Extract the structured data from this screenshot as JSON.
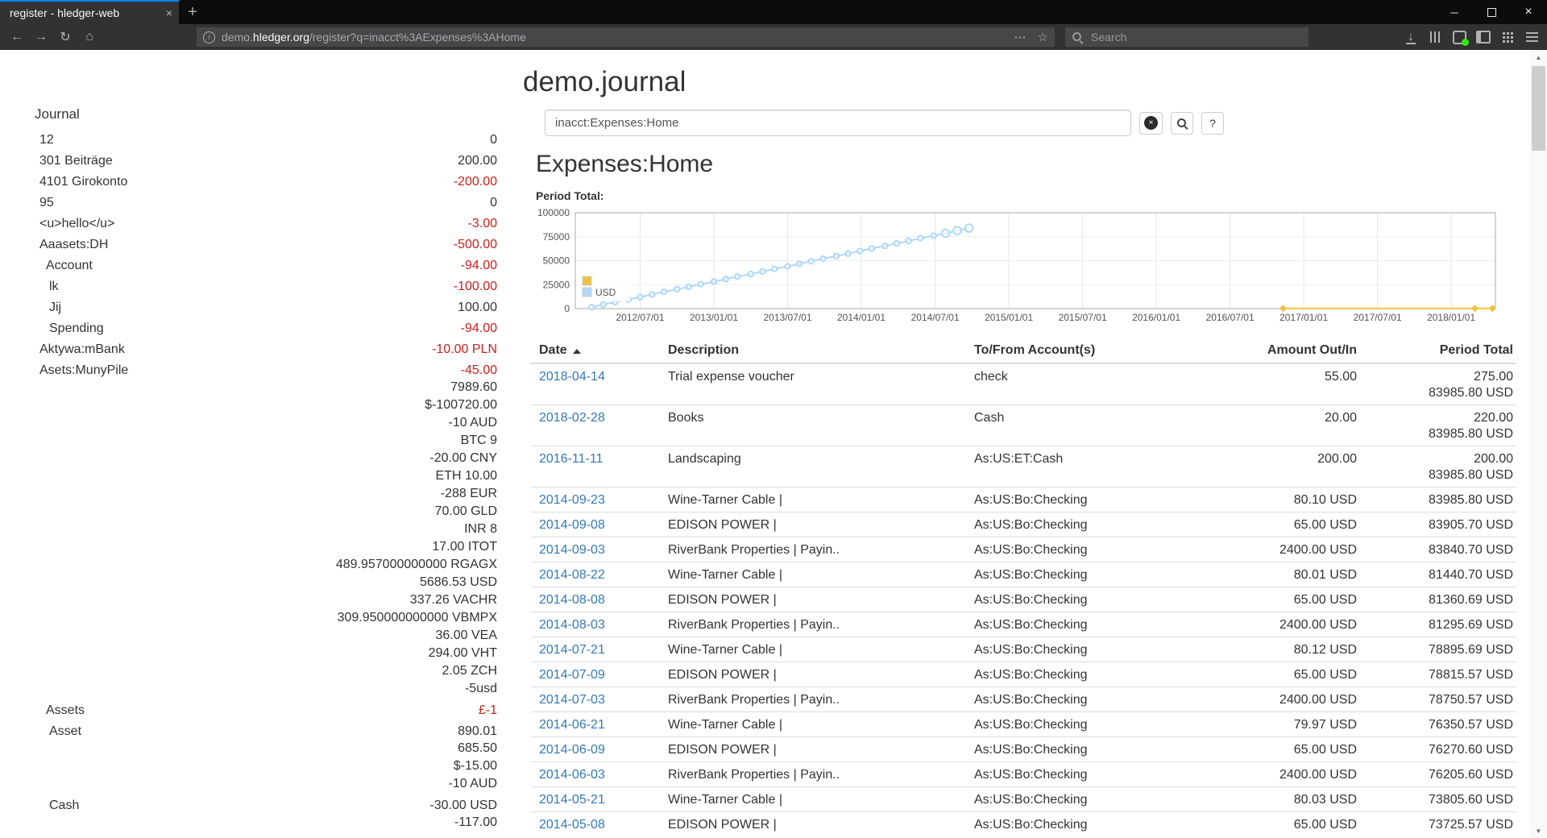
{
  "browser": {
    "tab_title": "register - hledger-web",
    "url": {
      "subdomain": "demo.",
      "domain": "hledger.org",
      "path": "/register?q=inacct%3AExpenses%3AHome"
    },
    "search_placeholder": "Search"
  },
  "icons": {
    "back": "←",
    "forward": "→",
    "reload": "↻",
    "home": "⌂",
    "info_letter": "i",
    "dots": "⋯",
    "star": "☆",
    "download": "↓",
    "minimize": "─",
    "close": "×",
    "tab_close": "×",
    "new_tab": "+",
    "scroll_up": "▲",
    "scroll_down": "▼",
    "clear": "×"
  },
  "page": {
    "title": "demo.journal",
    "query_value": "inacct:Expenses:Home",
    "heading": "Expenses:Home",
    "period_total_label": "Period Total:",
    "help_label": "?"
  },
  "sidebar": {
    "heading": "Journal",
    "accounts": [
      {
        "name": "12",
        "indent": 0,
        "bal": [
          {
            "t": "0"
          }
        ]
      },
      {
        "name": "301 Beiträge",
        "indent": 0,
        "bal": [
          {
            "t": "200.00"
          }
        ]
      },
      {
        "name": "4101 Girokonto",
        "indent": 0,
        "bal": [
          {
            "t": "-200.00",
            "neg": true
          }
        ]
      },
      {
        "name": "95",
        "indent": 0,
        "bal": [
          {
            "t": "0"
          }
        ]
      },
      {
        "name": "<u>hello</u>",
        "indent": 0,
        "bal": [
          {
            "t": "-3.00",
            "neg": true
          }
        ]
      },
      {
        "name": "Aaasets:DH",
        "indent": 0,
        "bal": [
          {
            "t": "-500.00",
            "neg": true
          }
        ]
      },
      {
        "name": "Account",
        "indent": 1,
        "bal": [
          {
            "t": "-94.00",
            "neg": true
          }
        ]
      },
      {
        "name": "lk",
        "indent": 2,
        "bal": [
          {
            "t": "-100.00",
            "neg": true
          }
        ]
      },
      {
        "name": "Jij",
        "indent": 2,
        "bal": [
          {
            "t": "100.00"
          }
        ]
      },
      {
        "name": "Spending",
        "indent": 2,
        "bal": [
          {
            "t": "-94.00",
            "neg": true
          }
        ]
      },
      {
        "name": "Aktywa:mBank",
        "indent": 0,
        "bal": [
          {
            "t": "-10.00 PLN",
            "neg": true
          }
        ]
      },
      {
        "name": "Asets:MunyPile",
        "indent": 0,
        "bal": [
          {
            "t": "-45.00",
            "neg": true
          },
          {
            "t": "7989.60"
          },
          {
            "t": "$-100720.00"
          },
          {
            "t": "-10 AUD"
          },
          {
            "t": "BTC 9"
          },
          {
            "t": "-20.00 CNY"
          },
          {
            "t": "ETH 10.00"
          },
          {
            "t": "-288 EUR"
          },
          {
            "t": "70.00 GLD"
          },
          {
            "t": "INR 8"
          },
          {
            "t": "17.00 ITOT"
          },
          {
            "t": "489.957000000000 RGAGX"
          },
          {
            "t": "5686.53 USD"
          },
          {
            "t": "337.26 VACHR"
          },
          {
            "t": "309.950000000000 VBMPX"
          },
          {
            "t": "36.00 VEA"
          },
          {
            "t": "294.00 VHT"
          },
          {
            "t": "2.05 ZCH"
          },
          {
            "t": "-5usd"
          }
        ]
      },
      {
        "name": "Assets",
        "indent": 1,
        "bal": [
          {
            "t": "£-1",
            "neg": true
          }
        ]
      },
      {
        "name": "Asset",
        "indent": 2,
        "bal": [
          {
            "t": "890.01"
          },
          {
            "t": "685.50"
          },
          {
            "t": "$-15.00"
          },
          {
            "t": "-10 AUD"
          }
        ]
      },
      {
        "name": "Cash",
        "indent": 2,
        "bal": [
          {
            "t": "-30.00 USD"
          },
          {
            "t": "-117.00"
          }
        ]
      }
    ]
  },
  "chart_data": {
    "type": "line",
    "title": "Period Total:",
    "xlabel": "",
    "ylabel": "",
    "x_domain": [
      2012.06,
      2018.3
    ],
    "ylim": [
      0,
      100000
    ],
    "grid": true,
    "legend_position": "bottom-left",
    "y_ticks": [
      {
        "value": 0,
        "label": "0"
      },
      {
        "value": 25000,
        "label": "25000"
      },
      {
        "value": 50000,
        "label": "50000"
      },
      {
        "value": 75000,
        "label": "75000"
      },
      {
        "value": 100000,
        "label": "100000"
      }
    ],
    "x_ticks": [
      {
        "value": 2012.5,
        "label": "2012/07/01"
      },
      {
        "value": 2013.0,
        "label": "2013/01/01"
      },
      {
        "value": 2013.5,
        "label": "2013/07/01"
      },
      {
        "value": 2014.0,
        "label": "2014/01/01"
      },
      {
        "value": 2014.5,
        "label": "2014/07/01"
      },
      {
        "value": 2015.0,
        "label": "2015/01/01"
      },
      {
        "value": 2015.5,
        "label": "2015/07/01"
      },
      {
        "value": 2016.0,
        "label": "2016/01/01"
      },
      {
        "value": 2016.5,
        "label": "2016/07/01"
      },
      {
        "value": 2017.0,
        "label": "2017/01/01"
      },
      {
        "value": 2017.5,
        "label": "2017/07/01"
      },
      {
        "value": 2018.0,
        "label": "2018/01/01"
      }
    ],
    "series": [
      {
        "name": "",
        "color": "#edc240",
        "marker": "diamond",
        "points": [
          [
            2016.86,
            200
          ],
          [
            2018.16,
            220
          ],
          [
            2018.28,
            275
          ]
        ]
      },
      {
        "name": "USD",
        "color": "#afd8f8",
        "marker": "circle",
        "points": [
          [
            2012.17,
            1500
          ],
          [
            2012.25,
            4160
          ],
          [
            2012.33,
            6820
          ],
          [
            2012.42,
            9480
          ],
          [
            2012.5,
            12140
          ],
          [
            2012.58,
            14800
          ],
          [
            2012.66,
            17460
          ],
          [
            2012.75,
            20130
          ],
          [
            2012.83,
            22790
          ],
          [
            2012.91,
            25450
          ],
          [
            2013.0,
            28110
          ],
          [
            2013.08,
            30770
          ],
          [
            2013.16,
            33430
          ],
          [
            2013.25,
            36090
          ],
          [
            2013.33,
            38750
          ],
          [
            2013.41,
            41410
          ],
          [
            2013.5,
            44070
          ],
          [
            2013.58,
            46730
          ],
          [
            2013.66,
            49400
          ],
          [
            2013.74,
            52060
          ],
          [
            2013.83,
            54720
          ],
          [
            2013.91,
            57380
          ],
          [
            2013.99,
            60040
          ],
          [
            2014.07,
            62700
          ],
          [
            2014.16,
            65360
          ],
          [
            2014.24,
            68020
          ],
          [
            2014.32,
            70680
          ],
          [
            2014.4,
            73342
          ],
          [
            2014.49,
            76003
          ],
          [
            2014.57,
            78664
          ],
          [
            2014.65,
            81324
          ],
          [
            2014.73,
            83985.8
          ]
        ]
      }
    ]
  },
  "register": {
    "columns": [
      {
        "label": "Date",
        "sorted": "asc"
      },
      {
        "label": "Description"
      },
      {
        "label": "To/From Account(s)"
      },
      {
        "label": "Amount Out/In",
        "align": "right"
      },
      {
        "label": "Period Total",
        "align": "right"
      }
    ],
    "rows": [
      {
        "date": "2018-04-14",
        "description": "Trial expense voucher",
        "account": "check",
        "amount": "55.00",
        "total": [
          "275.00",
          "83985.80 USD"
        ]
      },
      {
        "date": "2018-02-28",
        "description": "Books",
        "account": "Cash",
        "amount": "20.00",
        "total": [
          "220.00",
          "83985.80 USD"
        ]
      },
      {
        "date": "2016-11-11",
        "description": "Landscaping",
        "account": "As:US:ET:Cash",
        "amount": "200.00",
        "total": [
          "200.00",
          "83985.80 USD"
        ]
      },
      {
        "date": "2014-09-23",
        "description": "Wine-Tarner Cable |",
        "account": "As:US:Bo:Checking",
        "amount": "80.10 USD",
        "total": [
          "83985.80 USD"
        ]
      },
      {
        "date": "2014-09-08",
        "description": "EDISON POWER |",
        "account": "As:US:Bo:Checking",
        "amount": "65.00 USD",
        "total": [
          "83905.70 USD"
        ]
      },
      {
        "date": "2014-09-03",
        "description": "RiverBank Properties | Payin..",
        "account": "As:US:Bo:Checking",
        "amount": "2400.00 USD",
        "total": [
          "83840.70 USD"
        ]
      },
      {
        "date": "2014-08-22",
        "description": "Wine-Tarner Cable |",
        "account": "As:US:Bo:Checking",
        "amount": "80.01 USD",
        "total": [
          "81440.70 USD"
        ]
      },
      {
        "date": "2014-08-08",
        "description": "EDISON POWER |",
        "account": "As:US:Bo:Checking",
        "amount": "65.00 USD",
        "total": [
          "81360.69 USD"
        ]
      },
      {
        "date": "2014-08-03",
        "description": "RiverBank Properties | Payin..",
        "account": "As:US:Bo:Checking",
        "amount": "2400.00 USD",
        "total": [
          "81295.69 USD"
        ]
      },
      {
        "date": "2014-07-21",
        "description": "Wine-Tarner Cable |",
        "account": "As:US:Bo:Checking",
        "amount": "80.12 USD",
        "total": [
          "78895.69 USD"
        ]
      },
      {
        "date": "2014-07-09",
        "description": "EDISON POWER |",
        "account": "As:US:Bo:Checking",
        "amount": "65.00 USD",
        "total": [
          "78815.57 USD"
        ]
      },
      {
        "date": "2014-07-03",
        "description": "RiverBank Properties | Payin..",
        "account": "As:US:Bo:Checking",
        "amount": "2400.00 USD",
        "total": [
          "78750.57 USD"
        ]
      },
      {
        "date": "2014-06-21",
        "description": "Wine-Tarner Cable |",
        "account": "As:US:Bo:Checking",
        "amount": "79.97 USD",
        "total": [
          "76350.57 USD"
        ]
      },
      {
        "date": "2014-06-09",
        "description": "EDISON POWER |",
        "account": "As:US:Bo:Checking",
        "amount": "65.00 USD",
        "total": [
          "76270.60 USD"
        ]
      },
      {
        "date": "2014-06-03",
        "description": "RiverBank Properties | Payin..",
        "account": "As:US:Bo:Checking",
        "amount": "2400.00 USD",
        "total": [
          "76205.60 USD"
        ]
      },
      {
        "date": "2014-05-21",
        "description": "Wine-Tarner Cable |",
        "account": "As:US:Bo:Checking",
        "amount": "80.03 USD",
        "total": [
          "73805.60 USD"
        ]
      },
      {
        "date": "2014-05-08",
        "description": "EDISON POWER |",
        "account": "As:US:Bo:Checking",
        "amount": "65.00 USD",
        "total": [
          "73725.57 USD"
        ]
      }
    ]
  }
}
